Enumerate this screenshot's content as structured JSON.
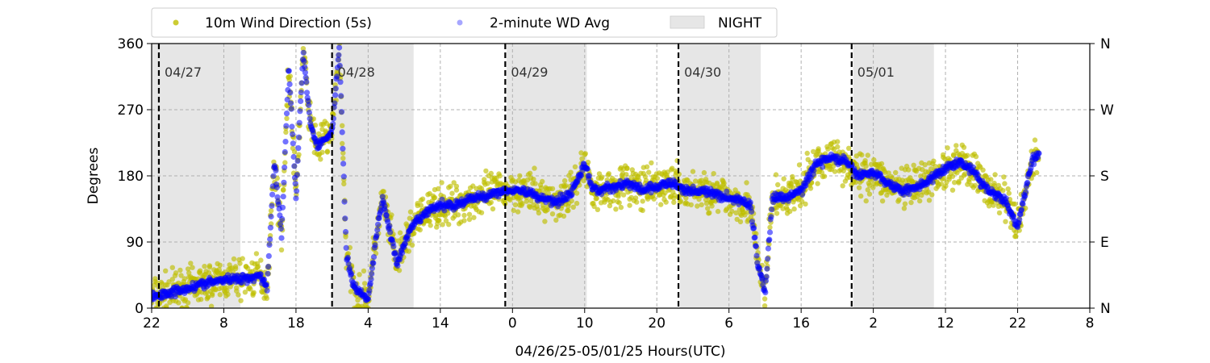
{
  "chart_data": {
    "type": "scatter",
    "xlabel": "04/26/25-05/01/25  Hours(UTC)",
    "ylabel": "Degrees",
    "x_range_hours": [
      0,
      130
    ],
    "x_tick_hours": [
      0,
      10,
      20,
      30,
      40,
      50,
      60,
      70,
      80,
      90,
      100,
      110,
      120,
      130
    ],
    "x_tick_labels": [
      "22",
      "8",
      "18",
      "4",
      "14",
      "0",
      "10",
      "20",
      "6",
      "16",
      "2",
      "12",
      "22",
      "8"
    ],
    "y_range": [
      0,
      360
    ],
    "y_ticks": [
      0,
      90,
      180,
      270,
      360
    ],
    "y_tick_labels": [
      "0",
      "90",
      "180",
      "270",
      "360"
    ],
    "right_ticks": [
      0,
      90,
      180,
      270,
      360
    ],
    "right_tick_labels": [
      "N",
      "E",
      "S",
      "W",
      "N"
    ],
    "grid": true,
    "legend_position": "top-left, above plot",
    "legend": [
      {
        "label": "10m Wind Direction (5s)",
        "kind": "marker",
        "color": "#bfbf00"
      },
      {
        "label": "2-minute WD Avg",
        "kind": "marker",
        "color": "#0000ff"
      },
      {
        "label": "NIGHT",
        "kind": "patch",
        "color": "#e6e6e6"
      }
    ],
    "night_periods_hours": [
      [
        0,
        12.3
      ],
      [
        25,
        36.3
      ],
      [
        49.2,
        60.3
      ],
      [
        73.2,
        84.4
      ],
      [
        97.2,
        108.4
      ]
    ],
    "day_markers": [
      {
        "hour": 1,
        "label": "04/27"
      },
      {
        "hour": 25,
        "label": "04/28"
      },
      {
        "hour": 49,
        "label": "04/29"
      },
      {
        "hour": 73,
        "label": "04/30"
      },
      {
        "hour": 97,
        "label": "05/01"
      }
    ],
    "series": [
      {
        "name": "2-minute WD Avg",
        "color": "#0000ff",
        "x": [
          0,
          2,
          4,
          6,
          8,
          10,
          12,
          14,
          15,
          16,
          17,
          18,
          19,
          20,
          21,
          22,
          23,
          24,
          25,
          26,
          27,
          28,
          29,
          30,
          31,
          32,
          34,
          36,
          38,
          40,
          42,
          44,
          46,
          48,
          50,
          52,
          54,
          56,
          58,
          59,
          60,
          61,
          62,
          64,
          66,
          68,
          70,
          72,
          74,
          76,
          78,
          80,
          82,
          83,
          84,
          85,
          86,
          88,
          90,
          92,
          94,
          96,
          98,
          100,
          102,
          104,
          106,
          108,
          110,
          112,
          114,
          115,
          116,
          118,
          120,
          122,
          123
        ],
        "y": [
          15,
          20,
          25,
          30,
          35,
          38,
          40,
          42,
          45,
          30,
          200,
          100,
          330,
          150,
          350,
          250,
          220,
          230,
          240,
          355,
          70,
          30,
          20,
          10,
          90,
          150,
          60,
          110,
          130,
          140,
          140,
          148,
          152,
          158,
          162,
          158,
          150,
          145,
          155,
          175,
          195,
          165,
          160,
          165,
          170,
          160,
          165,
          170,
          160,
          160,
          155,
          150,
          145,
          140,
          60,
          20,
          150,
          150,
          160,
          195,
          205,
          200,
          180,
          185,
          170,
          160,
          165,
          175,
          190,
          200,
          185,
          170,
          160,
          150,
          110,
          200,
          210
        ]
      },
      {
        "name": "10m Wind Direction (5s)",
        "color": "#bfbf00",
        "x": [
          0,
          2,
          4,
          6,
          8,
          10,
          12,
          14,
          15,
          16,
          17,
          18,
          19,
          20,
          21,
          22,
          23,
          24,
          25,
          26,
          27,
          28,
          29,
          30,
          31,
          32,
          34,
          36,
          38,
          40,
          42,
          44,
          46,
          48,
          50,
          52,
          54,
          56,
          58,
          59,
          60,
          61,
          62,
          64,
          66,
          68,
          70,
          72,
          74,
          76,
          78,
          80,
          82,
          83,
          84,
          85,
          86,
          88,
          90,
          92,
          94,
          96,
          98,
          100,
          102,
          104,
          106,
          108,
          110,
          112,
          114,
          115,
          116,
          118,
          120,
          122,
          123
        ],
        "y": [
          15,
          20,
          25,
          30,
          35,
          38,
          40,
          42,
          45,
          30,
          200,
          100,
          330,
          150,
          350,
          250,
          220,
          230,
          240,
          355,
          70,
          30,
          20,
          10,
          90,
          150,
          60,
          110,
          130,
          140,
          140,
          148,
          152,
          158,
          162,
          158,
          150,
          145,
          155,
          175,
          195,
          165,
          160,
          165,
          170,
          160,
          165,
          170,
          160,
          160,
          155,
          150,
          145,
          140,
          60,
          20,
          150,
          150,
          160,
          195,
          205,
          200,
          180,
          185,
          170,
          160,
          165,
          175,
          190,
          200,
          185,
          170,
          160,
          150,
          110,
          200,
          210
        ],
        "spread_degrees": 40
      }
    ]
  }
}
